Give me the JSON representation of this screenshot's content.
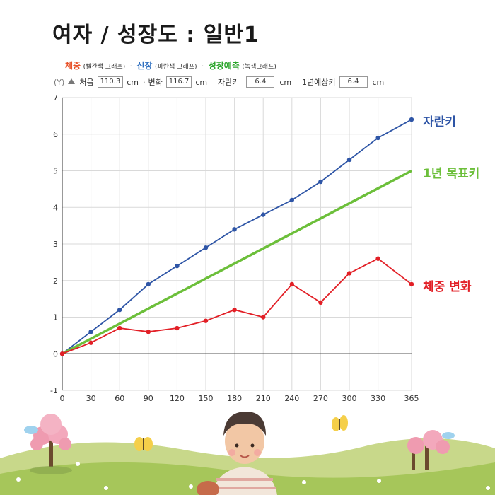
{
  "page_title": "여자 / 성장도 : 일반1",
  "legend": {
    "weight": {
      "label": "체중",
      "note": "(빨간색 그래프)",
      "color": "#e21f26"
    },
    "height": {
      "label": "신장",
      "note": "(파란색 그래프)",
      "color": "#2e55a6"
    },
    "forecast": {
      "label": "성장예측",
      "note": "(녹색그래프)",
      "color": "#2ba52b"
    },
    "separator": "·"
  },
  "info": {
    "y_marker": "(Y)",
    "first_label": "처음",
    "first_value": "110.3",
    "first_unit": "cm",
    "change_prefix": "·",
    "change_label": "변화",
    "change_value": "116.7",
    "change_unit": "cm",
    "growth_prefix": "·",
    "growth_label": "자란키",
    "growth_value": "6.4",
    "growth_unit": "cm",
    "forecast_prefix": "·",
    "forecast_label": "1년예상키",
    "forecast_value": "6.4",
    "forecast_unit": "cm"
  },
  "chart_data": {
    "type": "line",
    "x": [
      0,
      30,
      60,
      90,
      120,
      150,
      180,
      210,
      240,
      270,
      300,
      330,
      365
    ],
    "xticks": [
      "0",
      "30",
      "60",
      "90",
      "120",
      "150",
      "180",
      "210",
      "240",
      "270",
      "300",
      "330",
      "365"
    ],
    "ylim": [
      -1,
      7
    ],
    "yticks": [
      "-1",
      "0",
      "1",
      "2",
      "3",
      "4",
      "5",
      "6",
      "7"
    ],
    "grid": true,
    "series": [
      {
        "name": "자란키",
        "color": "#2e55a6",
        "markers": true,
        "values": [
          0,
          0.6,
          1.2,
          1.9,
          2.4,
          2.9,
          3.4,
          3.8,
          4.2,
          4.7,
          5.3,
          5.9,
          6.4
        ]
      },
      {
        "name": "1년 목표키",
        "color": "#6cbf3a",
        "markers": false,
        "x": [
          0,
          365
        ],
        "values": [
          0,
          5.0
        ]
      },
      {
        "name": "체중 변화",
        "color": "#e21f26",
        "markers": true,
        "values": [
          0,
          0.3,
          0.7,
          0.6,
          0.7,
          0.9,
          1.2,
          1.0,
          1.9,
          1.4,
          2.2,
          2.6,
          1.9
        ]
      }
    ]
  }
}
